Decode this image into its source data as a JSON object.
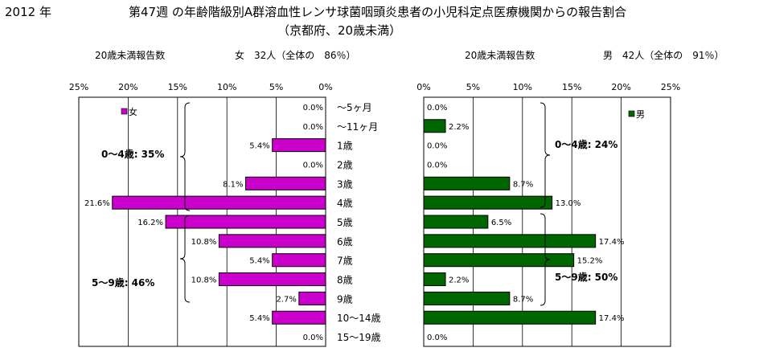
{
  "header": {
    "year": "2012 年",
    "title_line1": "第47週 の年齢階級別A群溶血性レンサ球菌咽頭炎患者の小児科定点医療機関からの報告割合",
    "title_line2": "（京都府、20歳未満）"
  },
  "left_panel": {
    "caption": "20歳未満報告数",
    "summary": "女　32人（全体の　86％）"
  },
  "right_panel": {
    "caption": "20歳未満報告数",
    "summary": "男　42人（全体の　91％）"
  },
  "chart_data": [
    {
      "type": "bar",
      "orientation": "horizontal",
      "x_direction": "reversed",
      "categories": [
        "～5ヶ月",
        "～11ヶ月",
        "1歳",
        "2歳",
        "3歳",
        "4歳",
        "5歳",
        "6歳",
        "7歳",
        "8歳",
        "9歳",
        "10～14歳",
        "15～19歳"
      ],
      "series": [
        {
          "name": "女",
          "values": [
            0.0,
            0.0,
            5.4,
            0.0,
            8.1,
            21.6,
            16.2,
            10.8,
            5.4,
            10.8,
            2.7,
            5.4,
            0.0
          ]
        }
      ],
      "value_labels": [
        "0.0%",
        "0.0%",
        "5.4%",
        "0.0%",
        "8.1%",
        "21.6%",
        "16.2%",
        "10.8%",
        "5.4%",
        "10.8%",
        "2.7%",
        "5.4%",
        "0.0%"
      ],
      "xlim": [
        0,
        25
      ],
      "xticks": [
        "25%",
        "20%",
        "15%",
        "10%",
        "5%",
        "0%"
      ],
      "annotations": [
        "0～4歳: 35%",
        "5～9歳: 46%"
      ],
      "legend_position": "top-left",
      "color": "#cc00cc",
      "grid": true
    },
    {
      "type": "bar",
      "orientation": "horizontal",
      "categories": [
        "～5ヶ月",
        "～11ヶ月",
        "1歳",
        "2歳",
        "3歳",
        "4歳",
        "5歳",
        "6歳",
        "7歳",
        "8歳",
        "9歳",
        "10～14歳",
        "15～19歳"
      ],
      "series": [
        {
          "name": "男",
          "values": [
            0.0,
            2.2,
            0.0,
            0.0,
            8.7,
            13.0,
            6.5,
            17.4,
            15.2,
            2.2,
            8.7,
            17.4,
            0.0
          ]
        }
      ],
      "value_labels": [
        "0.0%",
        "2.2%",
        "0.0%",
        "0.0%",
        "8.7%",
        "13.0%",
        "6.5%",
        "17.4%",
        "15.2%",
        "2.2%",
        "8.7%",
        "17.4%",
        "0.0%"
      ],
      "xlim": [
        0,
        25
      ],
      "xticks": [
        "0%",
        "5%",
        "10%",
        "15%",
        "20%",
        "25%"
      ],
      "annotations": [
        "0～4歳: 24%",
        "5～9歳: 50%"
      ],
      "legend_position": "top-right",
      "color": "#006600",
      "grid": true
    }
  ]
}
